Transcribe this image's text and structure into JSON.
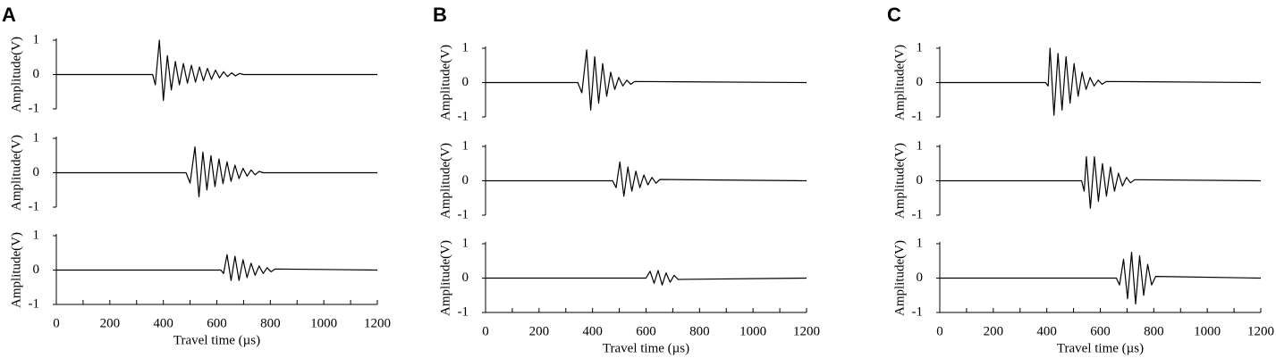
{
  "chart_data": [
    {
      "type": "line",
      "label": "A",
      "ylabel": "Amplitude(V)",
      "xlabel": "Travel time (µs)",
      "xlim": [
        0,
        1200
      ],
      "xticks": [
        0,
        200,
        400,
        600,
        800,
        1000,
        1200
      ],
      "xminorticks": [
        100,
        300,
        500,
        700,
        900,
        1100
      ],
      "ylim": [
        -1,
        1
      ],
      "yticks": [
        1,
        0,
        -1
      ],
      "color": "#000000",
      "subplots": [
        {
          "x": [
            0,
            360,
            370,
            385,
            400,
            415,
            430,
            445,
            460,
            475,
            490,
            505,
            520,
            535,
            550,
            565,
            580,
            595,
            610,
            625,
            640,
            655,
            670,
            685,
            700,
            1200
          ],
          "values": [
            0,
            0,
            -0.3,
            1.0,
            -0.75,
            0.55,
            -0.45,
            0.38,
            -0.3,
            0.32,
            -0.25,
            0.27,
            -0.22,
            0.22,
            -0.18,
            0.18,
            -0.14,
            0.13,
            -0.1,
            0.08,
            -0.06,
            0.05,
            -0.04,
            0.03,
            0,
            0
          ]
        },
        {
          "x": [
            0,
            485,
            500,
            518,
            533,
            548,
            563,
            578,
            593,
            608,
            623,
            638,
            653,
            668,
            683,
            698,
            713,
            728,
            743,
            758,
            773,
            1200
          ],
          "values": [
            0,
            0,
            -0.3,
            0.75,
            -0.7,
            0.6,
            -0.5,
            0.5,
            -0.4,
            0.4,
            -0.32,
            0.32,
            -0.25,
            0.22,
            -0.17,
            0.13,
            -0.1,
            0.08,
            -0.06,
            0.04,
            0,
            0
          ]
        },
        {
          "x": [
            0,
            615,
            625,
            638,
            653,
            668,
            683,
            698,
            713,
            728,
            743,
            758,
            773,
            788,
            803,
            818,
            1200
          ],
          "values": [
            0,
            0,
            -0.1,
            0.45,
            -0.3,
            0.4,
            -0.3,
            0.3,
            -0.22,
            0.2,
            -0.15,
            0.12,
            -0.1,
            0.07,
            -0.05,
            0.03,
            0
          ]
        }
      ]
    },
    {
      "type": "line",
      "label": "B",
      "ylabel": "Amplitude(V)",
      "xlabel": "Travel time (µs)",
      "xlim": [
        0,
        1200
      ],
      "xticks": [
        0,
        200,
        400,
        600,
        800,
        1000,
        1200
      ],
      "xminorticks": [
        100,
        300,
        500,
        700,
        900,
        1100
      ],
      "ylim": [
        -1,
        1
      ],
      "yticks": [
        1,
        0,
        -1
      ],
      "color": "#000000",
      "subplots": [
        {
          "x": [
            0,
            345,
            360,
            378,
            393,
            408,
            423,
            438,
            453,
            468,
            483,
            498,
            513,
            528,
            543,
            558,
            1200
          ],
          "values": [
            0,
            0,
            -0.3,
            0.95,
            -0.8,
            0.75,
            -0.6,
            0.55,
            -0.4,
            0.3,
            -0.2,
            0.15,
            -0.1,
            0.07,
            -0.05,
            0.03,
            0
          ]
        },
        {
          "x": [
            0,
            475,
            488,
            502,
            517,
            532,
            547,
            562,
            577,
            592,
            607,
            622,
            637,
            652,
            1200
          ],
          "values": [
            0,
            0,
            -0.2,
            0.55,
            -0.45,
            0.4,
            -0.3,
            0.28,
            -0.2,
            0.17,
            -0.12,
            0.1,
            -0.07,
            0.04,
            0
          ]
        },
        {
          "x": [
            0,
            600,
            615,
            630,
            645,
            660,
            675,
            690,
            705,
            720,
            1200
          ],
          "values": [
            0,
            0,
            0.2,
            -0.15,
            0.22,
            -0.2,
            0.15,
            -0.12,
            0.08,
            -0.04,
            0
          ]
        }
      ]
    },
    {
      "type": "line",
      "label": "C",
      "ylabel": "Amplitude(V)",
      "xlabel": "Travel time (µs)",
      "xlim": [
        0,
        1200
      ],
      "xticks": [
        0,
        200,
        400,
        600,
        800,
        1000,
        1200
      ],
      "xminorticks": [
        100,
        300,
        500,
        700,
        900,
        1100
      ],
      "ylim": [
        -1,
        1
      ],
      "yticks": [
        1,
        0,
        -1
      ],
      "color": "#000000",
      "subplots": [
        {
          "x": [
            0,
            395,
            405,
            412,
            427,
            442,
            457,
            472,
            487,
            502,
            517,
            532,
            547,
            562,
            577,
            592,
            607,
            622,
            1200
          ],
          "values": [
            0,
            0,
            -0.1,
            1.0,
            -0.95,
            0.85,
            -0.8,
            0.75,
            -0.6,
            0.55,
            -0.4,
            0.3,
            -0.2,
            0.15,
            -0.1,
            0.07,
            -0.05,
            0.03,
            0
          ]
        },
        {
          "x": [
            0,
            530,
            540,
            548,
            563,
            578,
            593,
            608,
            623,
            638,
            653,
            668,
            683,
            698,
            713,
            728,
            1200
          ],
          "values": [
            0,
            0,
            -0.3,
            0.7,
            -0.8,
            0.7,
            -0.6,
            0.5,
            -0.45,
            0.4,
            -0.3,
            0.22,
            -0.15,
            0.1,
            -0.06,
            0.03,
            0
          ]
        },
        {
          "x": [
            0,
            660,
            672,
            687,
            702,
            717,
            732,
            747,
            762,
            777,
            792,
            807,
            1200
          ],
          "values": [
            0,
            0,
            -0.2,
            0.55,
            -0.6,
            0.75,
            -0.75,
            0.65,
            -0.5,
            0.4,
            -0.2,
            0.05,
            0
          ]
        }
      ]
    }
  ]
}
